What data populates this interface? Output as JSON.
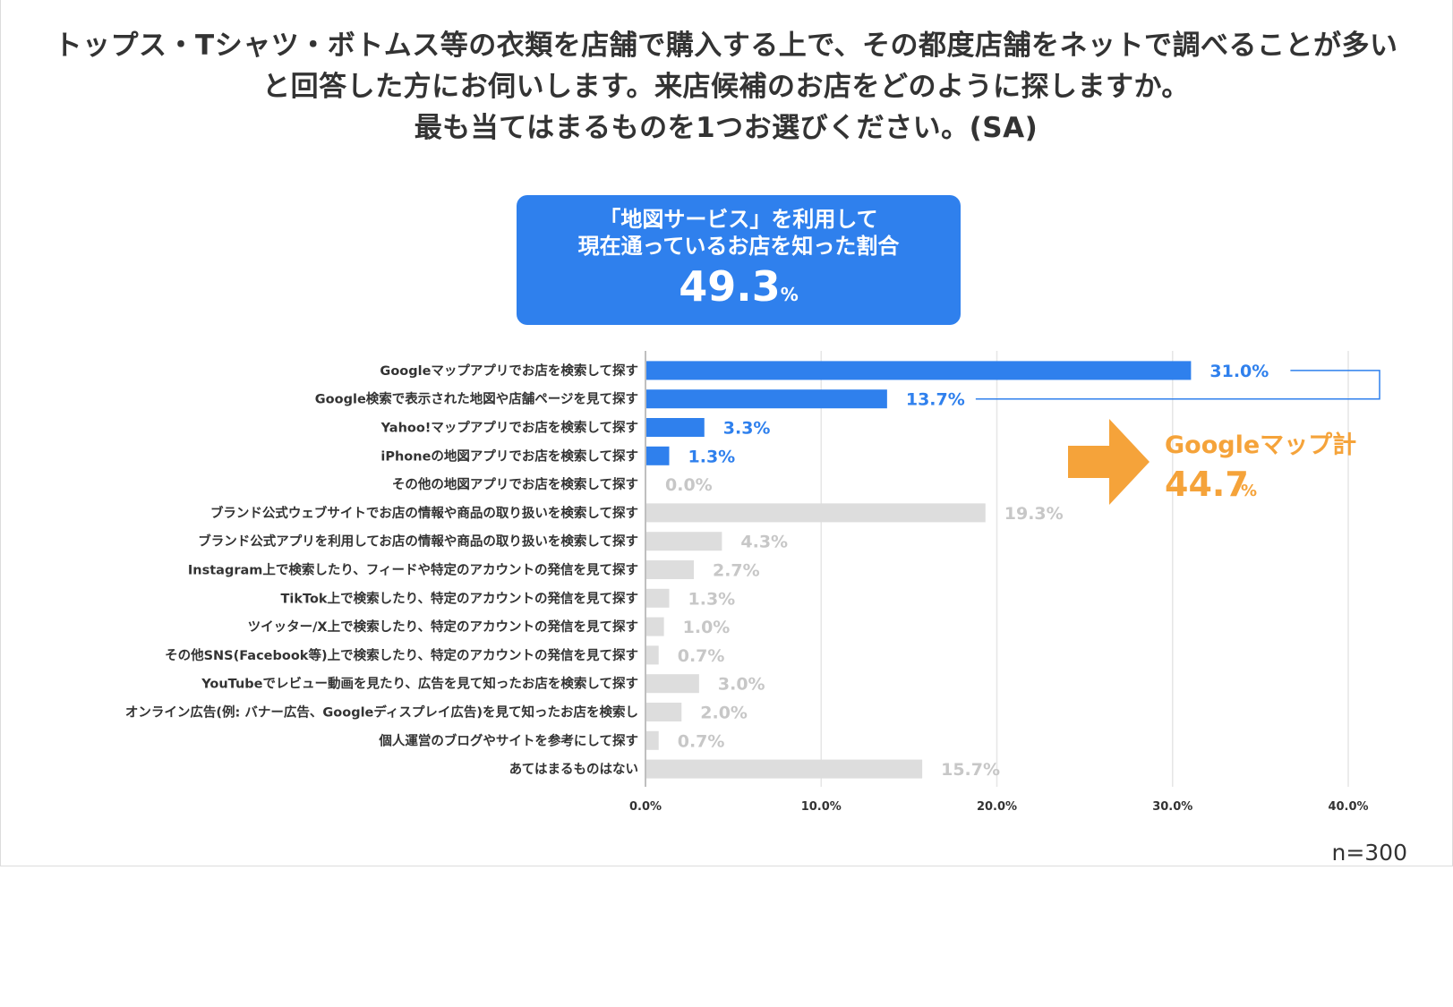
{
  "title": {
    "lines": [
      "トップス・Tシャツ・ボトムス等の衣類を店舗で購入する上で、その都度店舗をネットで調べることが多い",
      "と回答した方にお伺いします。来店候補のお店をどのように探しますか。",
      "最も当てはまるものを1つお選びください。(SA)"
    ]
  },
  "callout": {
    "line1": "「地図サービス」を利用して",
    "line2": "現在通っているお店を知った割合",
    "value": "49.3",
    "unit": "%"
  },
  "google_total": {
    "label": "Googleマップ計",
    "value": "44.7",
    "unit": "%"
  },
  "sample_note": "n=300",
  "colors": {
    "highlight": "#2f80ed",
    "gray_bar": "#dddddd",
    "gray_label": "#c7c7c7",
    "callout_bg": "#2f80ed",
    "arrow": "#f5a33a",
    "grid": "#e6e6e6",
    "axis": "#aaaaaa",
    "text": "#333333"
  },
  "chart_data": {
    "type": "bar",
    "orientation": "horizontal",
    "xlim": [
      0,
      40
    ],
    "xticks": [
      "0.0%",
      "10.0%",
      "20.0%",
      "30.0%",
      "40.0%"
    ],
    "xtick_values": [
      0,
      10,
      20,
      30,
      40
    ],
    "grid": true,
    "categories": [
      "Googleマップアプリでお店を検索して探す",
      "Google検索で表示された地図や店舗ページを見て探す",
      "Yahoo!マップアプリでお店を検索して探す",
      "iPhoneの地図アプリでお店を検索して探す",
      "その他の地図アプリでお店を検索して探す",
      "ブランド公式ウェブサイトでお店の情報や商品の取り扱いを検索して探す",
      "ブランド公式アプリを利用してお店の情報や商品の取り扱いを検索して探す",
      "Instagram上で検索したり、フィードや特定のアカウントの発信を見て探す",
      "TikTok上で検索したり、特定のアカウントの発信を見て探す",
      "ツイッター/X上で検索したり、特定のアカウントの発信を見て探す",
      "その他SNS(Facebook等)上で検索したり、特定のアカウントの発信を見て探す",
      "YouTubeでレビュー動画を見たり、広告を見て知ったお店を検索して探す",
      "オンライン広告(例: バナー広告、Googleディスプレイ広告)を見て知ったお店を検索し",
      "個人運営のブログやサイトを参考にして探す",
      "あてはまるものはない"
    ],
    "values": [
      31.0,
      13.7,
      3.3,
      1.3,
      0.0,
      19.3,
      4.3,
      2.7,
      1.3,
      1.0,
      0.7,
      3.0,
      2.0,
      0.7,
      15.7
    ],
    "value_labels": [
      "31.0%",
      "13.7%",
      "3.3%",
      "1.3%",
      "0.0%",
      "19.3%",
      "4.3%",
      "2.7%",
      "1.3%",
      "1.0%",
      "0.7%",
      "3.0%",
      "2.0%",
      "0.7%",
      "15.7%"
    ],
    "highlighted": [
      true,
      true,
      true,
      true,
      false,
      false,
      false,
      false,
      false,
      false,
      false,
      false,
      false,
      false,
      false
    ]
  }
}
